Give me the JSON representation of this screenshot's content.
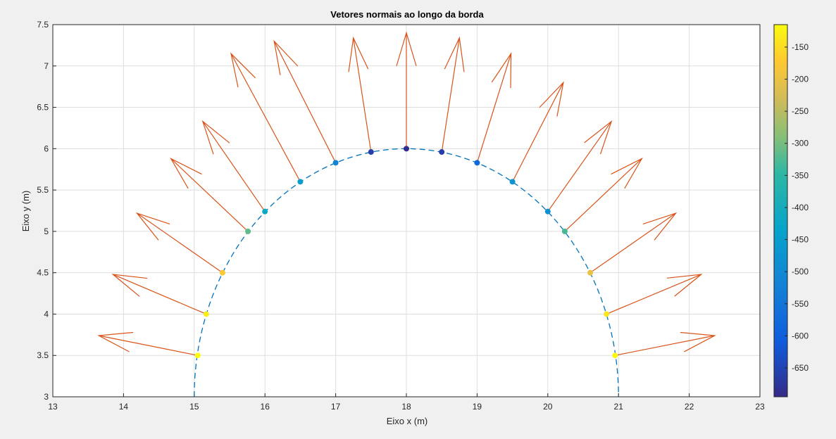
{
  "chart_data": {
    "type": "scatter",
    "title": "Vetores normais ao longo da borda",
    "xlabel": "Eixo x (m)",
    "ylabel": "Eixo y (m)",
    "xlim": [
      13,
      23
    ],
    "ylim": [
      3,
      7.5
    ],
    "xticks": [
      "13",
      "14",
      "15",
      "16",
      "17",
      "18",
      "19",
      "20",
      "21",
      "22",
      "23"
    ],
    "yticks": [
      "3",
      "3.5",
      "4",
      "4.5",
      "5",
      "5.5",
      "6",
      "6.5",
      "7",
      "7.5"
    ],
    "grid": true,
    "boundary": {
      "center": [
        18,
        3
      ],
      "radius": 3,
      "style": "dashed",
      "color": "#0072BD"
    },
    "points": [
      {
        "x": 15.05,
        "y": 3.5,
        "value": -115,
        "tip": [
          13.65,
          3.74
        ]
      },
      {
        "x": 15.17,
        "y": 4.0,
        "value": -130,
        "tip": [
          13.85,
          4.48
        ]
      },
      {
        "x": 15.4,
        "y": 4.5,
        "value": -175,
        "tip": [
          14.19,
          5.22
        ]
      },
      {
        "x": 15.76,
        "y": 5.0,
        "value": -315,
        "tip": [
          14.67,
          5.88
        ]
      },
      {
        "x": 16.0,
        "y": 5.24,
        "value": -420,
        "tip": [
          15.12,
          6.33
        ]
      },
      {
        "x": 16.5,
        "y": 5.6,
        "value": -450,
        "tip": [
          15.52,
          7.15
        ]
      },
      {
        "x": 17.0,
        "y": 5.83,
        "value": -515,
        "tip": [
          16.13,
          7.3
        ]
      },
      {
        "x": 17.5,
        "y": 5.96,
        "value": -660,
        "tip": [
          17.25,
          7.34
        ]
      },
      {
        "x": 18.0,
        "y": 6.0,
        "value": -690,
        "tip": [
          18.0,
          7.4
        ]
      },
      {
        "x": 18.5,
        "y": 5.96,
        "value": -660,
        "tip": [
          18.75,
          7.34
        ]
      },
      {
        "x": 19.0,
        "y": 5.83,
        "value": -580,
        "tip": [
          19.48,
          7.15
        ]
      },
      {
        "x": 19.5,
        "y": 5.6,
        "value": -475,
        "tip": [
          20.22,
          6.8
        ]
      },
      {
        "x": 20.0,
        "y": 5.24,
        "value": -480,
        "tip": [
          20.9,
          6.33
        ]
      },
      {
        "x": 20.24,
        "y": 5.0,
        "value": -330,
        "tip": [
          21.33,
          5.88
        ]
      },
      {
        "x": 20.6,
        "y": 4.5,
        "value": -200,
        "tip": [
          21.81,
          5.22
        ]
      },
      {
        "x": 20.83,
        "y": 4.0,
        "value": -140,
        "tip": [
          22.17,
          4.48
        ]
      },
      {
        "x": 20.95,
        "y": 3.5,
        "value": -118,
        "tip": [
          22.36,
          3.74
        ]
      }
    ],
    "arrow_color": "#D95319",
    "colorbar": {
      "range": [
        -695,
        -115
      ],
      "ticks": [
        "-150",
        "-200",
        "-250",
        "-300",
        "-350",
        "-400",
        "-450",
        "-500",
        "-550",
        "-600",
        "-650"
      ],
      "colormap": "parula"
    }
  }
}
